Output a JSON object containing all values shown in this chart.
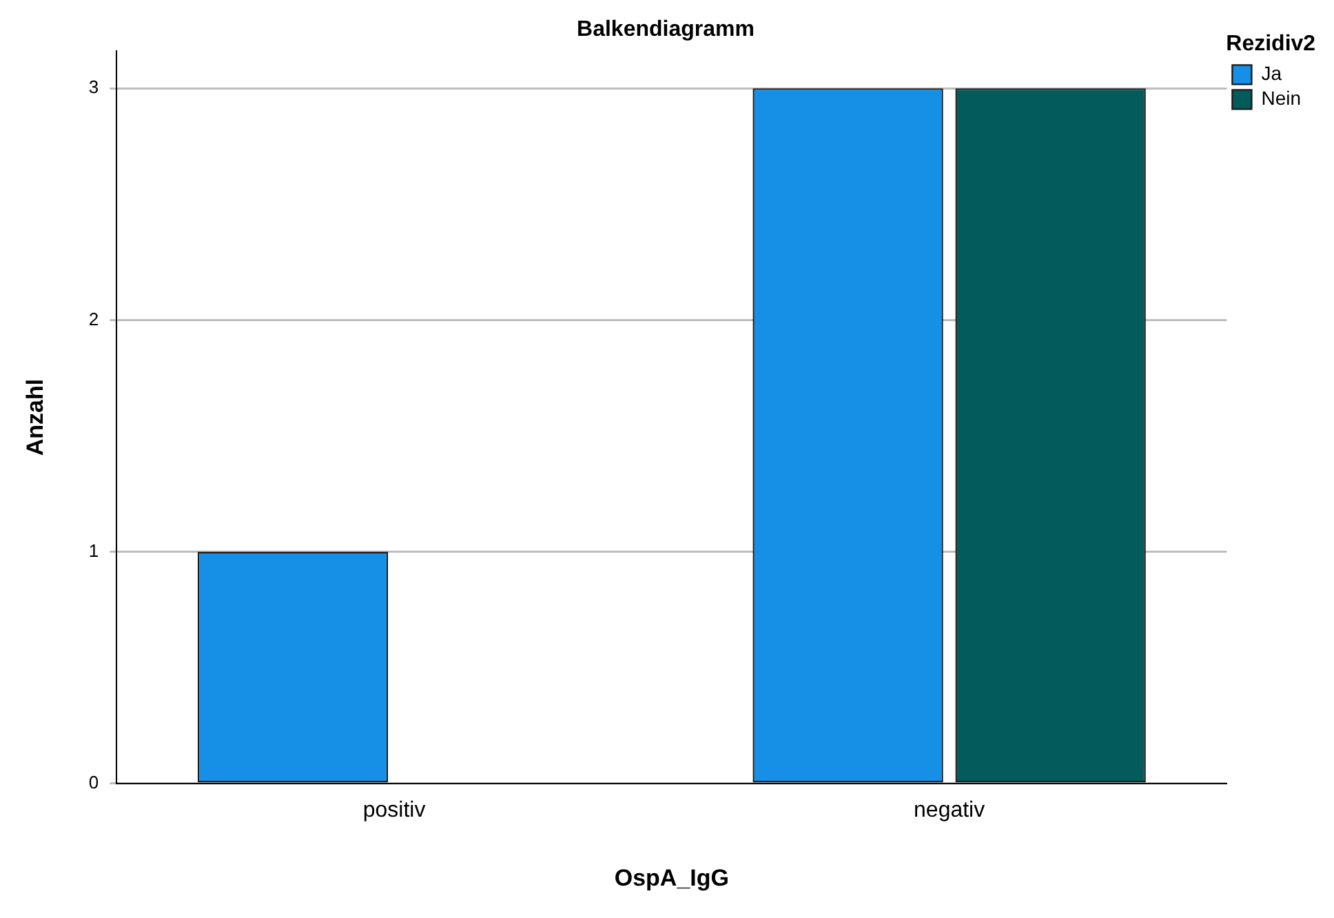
{
  "chart_data": {
    "type": "bar",
    "title": "Balkendiagramm",
    "xlabel": "OspA_IgG",
    "ylabel": "Anzahl",
    "legend_title": "Rezidiv2",
    "categories": [
      "positiv",
      "negativ"
    ],
    "series": [
      {
        "name": "Ja",
        "color": "#1590e6",
        "values": [
          1,
          3
        ]
      },
      {
        "name": "Nein",
        "color": "#035b5b",
        "values": [
          null,
          3
        ]
      }
    ],
    "ylim": [
      0,
      3.16
    ],
    "yticks": [
      0,
      1,
      2,
      3
    ],
    "grid": "y",
    "legend": "top right"
  }
}
